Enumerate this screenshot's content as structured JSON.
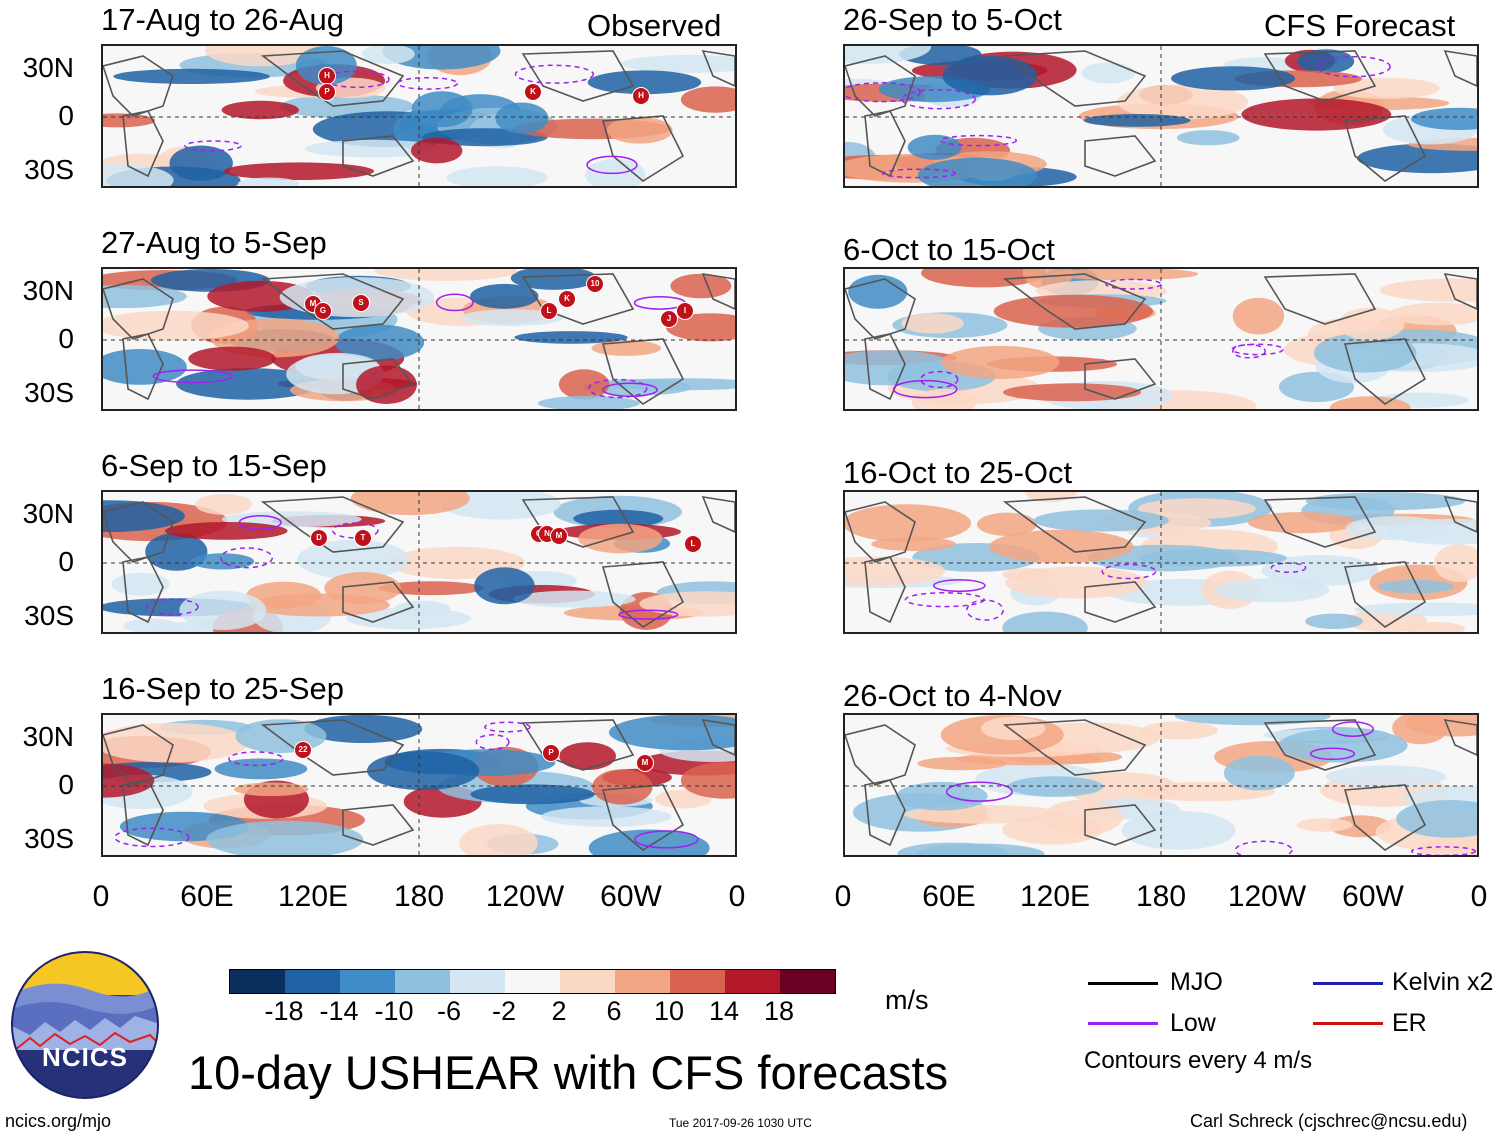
{
  "header": {
    "observed_label": "Observed",
    "forecast_label": "CFS Forecast"
  },
  "panels_left": [
    {
      "title": "17-Aug to 26-Aug",
      "storms": [
        "H",
        "P",
        "K",
        "H"
      ]
    },
    {
      "title": "27-Aug to 5-Sep",
      "storms": [
        "M",
        "G",
        "S",
        "L",
        "K",
        "10",
        "J",
        "I"
      ]
    },
    {
      "title": "6-Sep to 15-Sep",
      "storms": [
        "D",
        "T",
        "O",
        "N",
        "M",
        "L"
      ]
    },
    {
      "title": "16-Sep to 25-Sep",
      "storms": [
        "22",
        "P",
        "M"
      ]
    }
  ],
  "panels_right": [
    {
      "title": "26-Sep to 5-Oct"
    },
    {
      "title": "6-Oct to 15-Oct"
    },
    {
      "title": "16-Oct to 25-Oct"
    },
    {
      "title": "26-Oct to 4-Nov"
    }
  ],
  "lat_labels": [
    "30N",
    "0",
    "30S"
  ],
  "lon_labels": [
    "0",
    "60E",
    "120E",
    "180",
    "120W",
    "60W",
    "0"
  ],
  "colorbar": {
    "colors": [
      "#0a2f5f",
      "#1e62a3",
      "#3f8cc6",
      "#8fc1de",
      "#d4e6f2",
      "#f7f7f7",
      "#fbd8c5",
      "#f3a683",
      "#d9634f",
      "#b3182b",
      "#6a0022"
    ],
    "ticks": [
      "-18",
      "-14",
      "-10",
      "-6",
      "-2",
      "2",
      "6",
      "10",
      "14",
      "18"
    ],
    "unit": "m/s"
  },
  "legend": {
    "mjo": "MJO",
    "low": "Low",
    "kelvin": "Kelvin x2",
    "er": "ER",
    "contours": "Contours every 4 m/s",
    "colors": {
      "mjo": "#000000",
      "low": "#a020f0",
      "kelvin": "#1f1fb0",
      "er": "#d01010"
    }
  },
  "logo_text": "NCICS",
  "main_title": "10-day USHEAR with CFS forecasts",
  "footer": {
    "url": "ncics.org/mjo",
    "timestamp": "Tue 2017-09-26 1030 UTC",
    "author": "Carl Schreck (cjschrec@ncsu.edu)"
  }
}
